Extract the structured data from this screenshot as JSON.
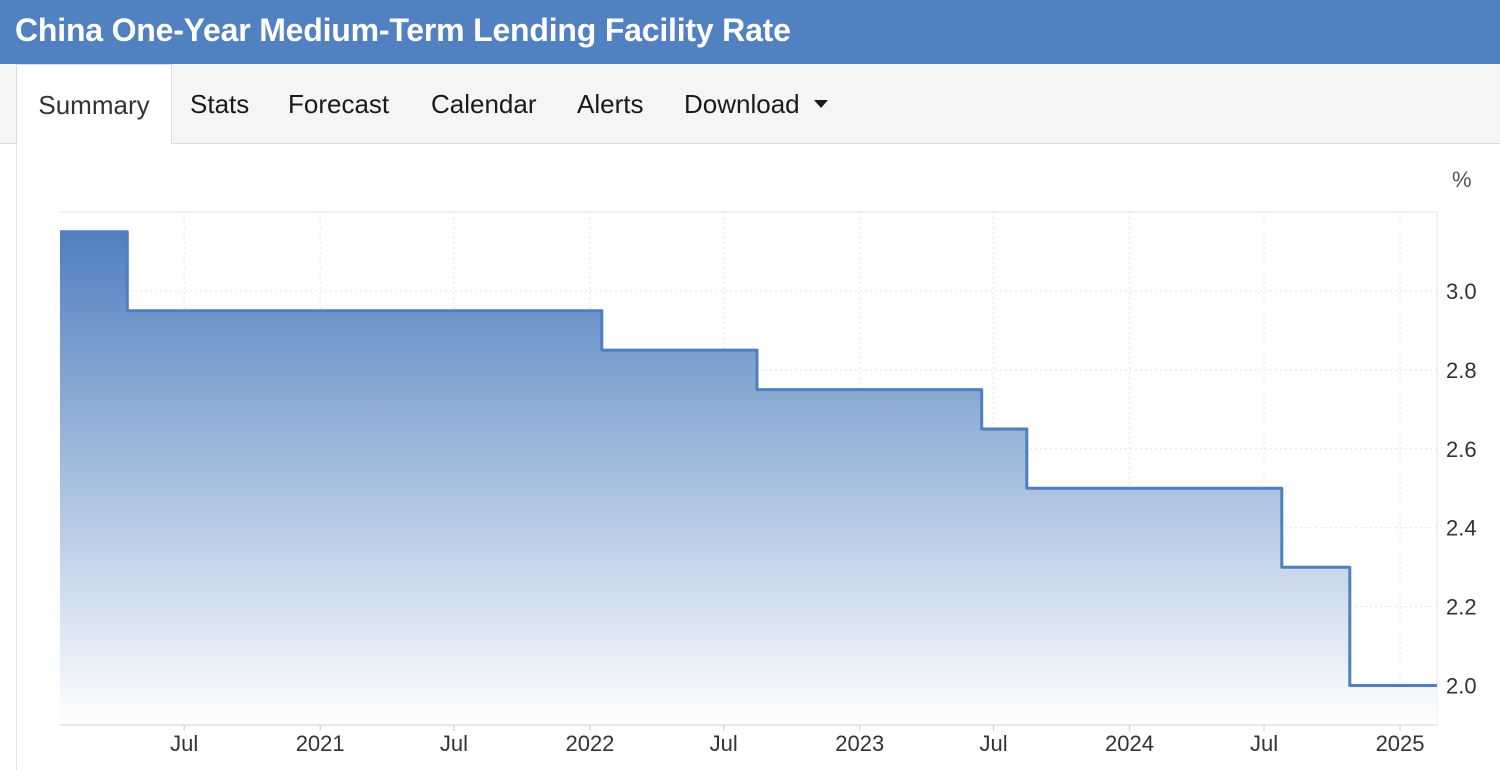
{
  "header": {
    "title": "China One-Year Medium-Term Lending Facility Rate"
  },
  "tabs": [
    {
      "label": "Summary",
      "active": true
    },
    {
      "label": "Stats",
      "active": false
    },
    {
      "label": "Forecast",
      "active": false
    },
    {
      "label": "Calendar",
      "active": false
    },
    {
      "label": "Alerts",
      "active": false
    },
    {
      "label": "Download",
      "active": false
    }
  ],
  "colors": {
    "header_bg": "#5181c0",
    "series_line": "#4f7fbf",
    "fill_top": "#4f7fbf",
    "fill_bottom": "#ffffff",
    "grid": "#e3e3e3"
  },
  "chart_data": {
    "type": "area",
    "title": "China One-Year Medium-Term Lending Facility Rate",
    "ylabel": "%",
    "y_axis_side": "right",
    "ylim": [
      1.9,
      3.2
    ],
    "xlim": [
      "2020-01-15",
      "2025-02-20"
    ],
    "grid": true,
    "step": true,
    "x_ticks": [
      {
        "date": "2020-07-01",
        "label": "Jul"
      },
      {
        "date": "2021-01-01",
        "label": "2021"
      },
      {
        "date": "2021-07-01",
        "label": "Jul"
      },
      {
        "date": "2022-01-01",
        "label": "2022"
      },
      {
        "date": "2022-07-01",
        "label": "Jul"
      },
      {
        "date": "2023-01-01",
        "label": "2023"
      },
      {
        "date": "2023-07-01",
        "label": "Jul"
      },
      {
        "date": "2024-01-01",
        "label": "2024"
      },
      {
        "date": "2024-07-01",
        "label": "Jul"
      },
      {
        "date": "2025-01-01",
        "label": "2025"
      }
    ],
    "y_ticks": [
      {
        "value": 2.0,
        "label": "2.0"
      },
      {
        "value": 2.2,
        "label": "2.2"
      },
      {
        "value": 2.4,
        "label": "2.4"
      },
      {
        "value": 2.6,
        "label": "2.6"
      },
      {
        "value": 2.8,
        "label": "2.8"
      },
      {
        "value": 3.0,
        "label": "3.0"
      }
    ],
    "series": [
      {
        "points": [
          {
            "date": "2020-01-15",
            "value": 3.15
          },
          {
            "date": "2020-04-15",
            "value": 2.95
          },
          {
            "date": "2022-01-17",
            "value": 2.85
          },
          {
            "date": "2022-08-15",
            "value": 2.75
          },
          {
            "date": "2023-06-15",
            "value": 2.65
          },
          {
            "date": "2023-08-15",
            "value": 2.5
          },
          {
            "date": "2024-07-25",
            "value": 2.3
          },
          {
            "date": "2024-10-25",
            "value": 2.0
          },
          {
            "date": "2025-02-20",
            "value": 2.0
          }
        ]
      }
    ]
  }
}
